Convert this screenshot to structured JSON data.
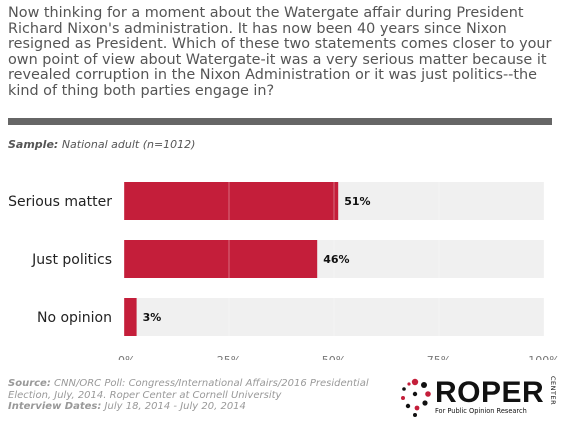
{
  "question": "Now thinking for a moment about the Watergate affair during President Richard Nixon's administration. It has now been 40 years since Nixon resigned as President. Which of these two statements comes closer to your own point of view about Watergate-it was a very serious matter because it revealed corruption in the Nixon Administration or it was just politics--the kind of thing both parties engage in?",
  "sample": {
    "label": "Sample:",
    "text": "National adult (n=1012)"
  },
  "chart_data": {
    "type": "bar",
    "orientation": "horizontal",
    "categories": [
      "Serious matter",
      "Just politics",
      "No opinion"
    ],
    "values": [
      51,
      46,
      3
    ],
    "value_labels": [
      "51%",
      "46%",
      "3%"
    ],
    "xlim": [
      0,
      100
    ],
    "xticks": [
      "0%",
      "25%",
      "50%",
      "75%",
      "100%"
    ],
    "bar_color": "#c41e3a",
    "track_color": "#f0f0f0",
    "grid": true
  },
  "footer": {
    "source_label": "Source:",
    "source_text": "CNN/ORC Poll: Congress/International Affairs/2016 Presidential Election, July, 2014. Roper Center at Cornell University",
    "dates_label": "Interview Dates:",
    "dates_text": "July 18, 2014 - July 20, 2014"
  },
  "logo": {
    "word": "ROPER",
    "vertical": "CENTER",
    "tagline": "For Public Opinion Research",
    "color": "#c41e3a"
  }
}
